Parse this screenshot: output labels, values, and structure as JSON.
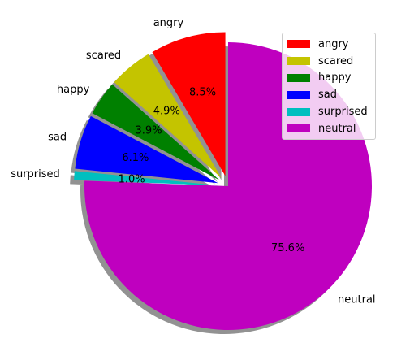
{
  "chart_data": {
    "type": "pie",
    "title": "",
    "categories": [
      "angry",
      "scared",
      "happy",
      "sad",
      "surprised",
      "neutral"
    ],
    "percent_labels": [
      "8.5%",
      "4.9%",
      "3.9%",
      "6.1%",
      "1.0%",
      "75.6%"
    ],
    "values": [
      8.5,
      4.9,
      3.9,
      6.1,
      1.0,
      75.6
    ],
    "colors": [
      "#ff0000",
      "#c4c400",
      "#008000",
      "#0000ff",
      "#00bfbf",
      "#bf00bf"
    ],
    "start_angle_deg": 90,
    "direction": "counterclockwise",
    "exploded": true,
    "shadow": true,
    "legend_position": "top-right"
  },
  "legend": {
    "items": [
      {
        "label": "angry",
        "color": "#ff0000"
      },
      {
        "label": "scared",
        "color": "#c4c400"
      },
      {
        "label": "happy",
        "color": "#008000"
      },
      {
        "label": "sad",
        "color": "#0000ff"
      },
      {
        "label": "surprised",
        "color": "#00bfbf"
      },
      {
        "label": "neutral",
        "color": "#bf00bf"
      }
    ]
  }
}
